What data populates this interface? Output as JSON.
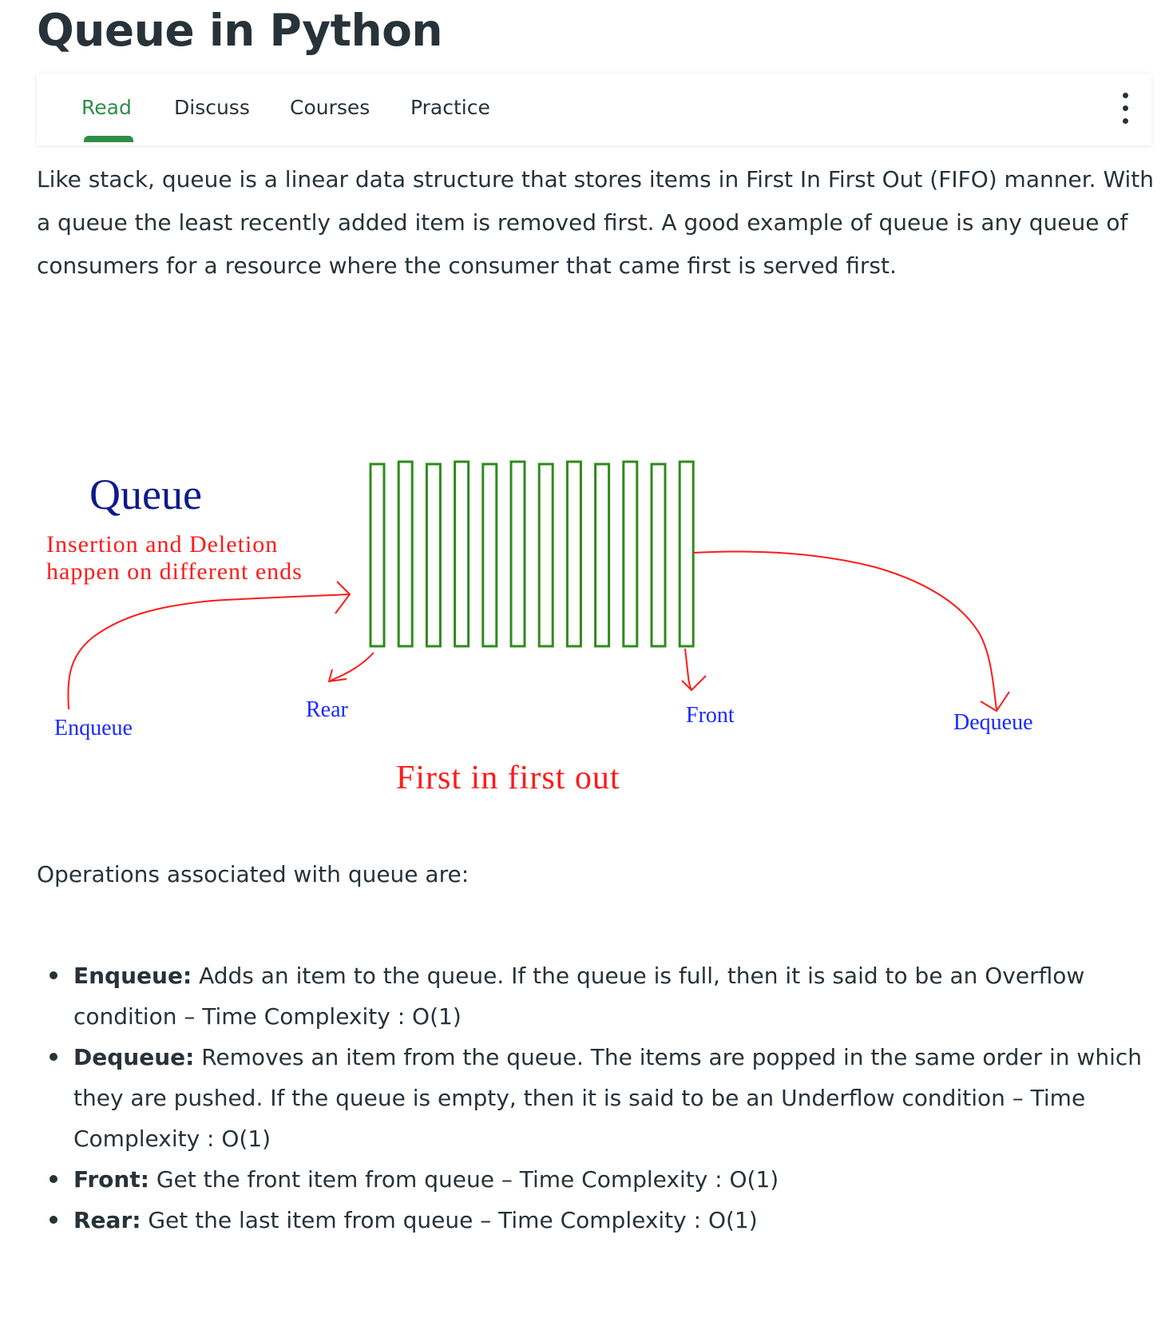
{
  "title": "Queue in Python",
  "tabs": [
    {
      "label": "Read",
      "active": true
    },
    {
      "label": "Discuss",
      "active": false
    },
    {
      "label": "Courses",
      "active": false
    },
    {
      "label": "Practice",
      "active": false
    }
  ],
  "intro": "Like stack, queue is a linear data structure that stores items in First In First Out (FIFO) manner. With a queue the least recently added item is removed first. A good example of queue is any queue of consumers for a resource where the consumer that came first is served first.",
  "figure": {
    "heading": "Queue",
    "subtitle_line1": "Insertion and Deletion",
    "subtitle_line2": "happen on different ends",
    "enqueue": "Enqueue",
    "rear": "Rear",
    "front": "Front",
    "dequeue": "Dequeue",
    "caption": "First in first out",
    "colors": {
      "heading": "#0d1a8a",
      "red": "#ff1a1a",
      "blue": "#1a2aff",
      "green": "#2f8b1b"
    }
  },
  "ops_intro": "Operations associated with queue are:",
  "operations": [
    {
      "name": "Enqueue:",
      "text": "Adds an item to the queue. If the queue is full, then it is said to be an Overflow condition – Time Complexity : O(1)"
    },
    {
      "name": "Dequeue:",
      "text": "Removes an item from the queue. The items are popped in the same order in which they are pushed. If the queue is empty, then it is said to be an Underflow condition – Time Complexity : O(1)"
    },
    {
      "name": "Front:",
      "text": "Get the front item from queue – Time Complexity : O(1)"
    },
    {
      "name": "Rear:",
      "text": "Get the last item from queue – Time Complexity : O(1)"
    }
  ],
  "colors": {
    "text": "#273239",
    "accent": "#2f8d46"
  }
}
